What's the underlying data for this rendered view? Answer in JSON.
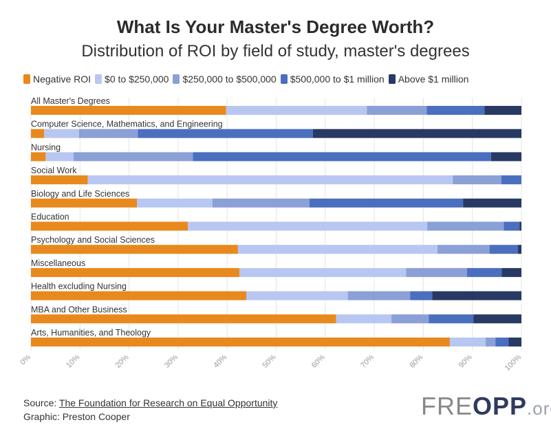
{
  "header": {
    "title": "What Is Your Master's Degree Worth?",
    "subtitle": "Distribution of ROI by field of study, master's degrees"
  },
  "footer": {
    "source_prefix": "Source: ",
    "source_link": "The Foundation for Research on Equal Opportunity",
    "graphic": "Graphic: Preston Cooper"
  },
  "logo": {
    "text": "FREOPP.org"
  },
  "chart_data": {
    "type": "bar",
    "orientation": "horizontal",
    "stacked": true,
    "title": "What Is Your Master's Degree Worth?",
    "subtitle": "Distribution of ROI by field of study, master's degrees",
    "xlabel": "",
    "ylabel": "",
    "xlim": [
      0,
      100
    ],
    "x_ticks": [
      "0%",
      "10%",
      "20%",
      "30%",
      "40%",
      "50%",
      "60%",
      "70%",
      "80%",
      "90%",
      "100%"
    ],
    "legend_position": "top",
    "categories": [
      "All Master's Degrees",
      "Computer Science, Mathematics, and Engineering",
      "Nursing",
      "Social Work",
      "Biology and Life Sciences",
      "Education",
      "Psychology and Social Sciences",
      "Miscellaneous",
      "Health excluding Nursing",
      "MBA and Other Business",
      "Arts, Humanities, and Theology"
    ],
    "series": [
      {
        "name": "Negative ROI",
        "color": "#e8891e",
        "values": [
          39.8,
          2.7,
          3.0,
          11.6,
          21.6,
          32.0,
          42.2,
          42.5,
          43.9,
          62.2,
          85.4
        ]
      },
      {
        "name": "$0 to $250,000",
        "color": "#b8c7f2",
        "values": [
          28.7,
          7.1,
          5.7,
          74.4,
          15.4,
          48.8,
          40.7,
          34.0,
          20.7,
          11.3,
          7.3
        ]
      },
      {
        "name": "$250,000 to $500,000",
        "color": "#8aa0d6",
        "values": [
          12.2,
          12.0,
          24.3,
          9.9,
          19.8,
          15.6,
          10.6,
          12.4,
          12.7,
          7.6,
          2.0
        ]
      },
      {
        "name": "$500,000 to $1 million",
        "color": "#4b6fbf",
        "values": [
          11.8,
          35.7,
          60.8,
          4.1,
          31.3,
          3.2,
          5.8,
          7.1,
          4.5,
          9.1,
          2.7
        ]
      },
      {
        "name": "Above $1 million",
        "color": "#283a63",
        "values": [
          7.5,
          42.5,
          6.2,
          0.0,
          11.9,
          0.4,
          0.7,
          4.0,
          18.2,
          9.8,
          2.6
        ]
      }
    ]
  }
}
